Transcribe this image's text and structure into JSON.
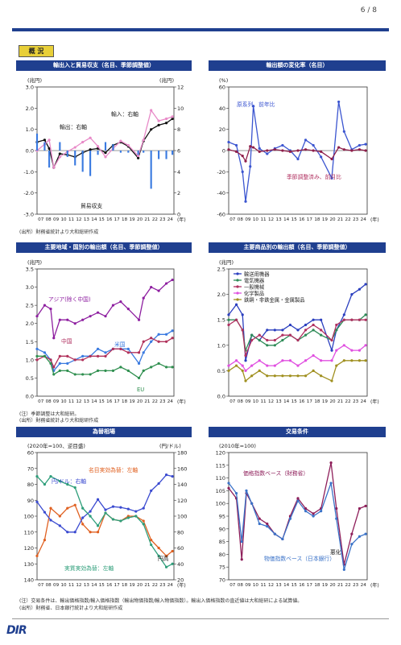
{
  "page_number": "6 / 8",
  "section_badge": "概 況",
  "footnotes": {
    "n1": "(出所）財務省統計より大和総研作成",
    "n2": "(出所）財務省統計より大和総研作成",
    "n3a": "(注）季節調整は大和総研。",
    "n3b": "(出所）財務省統計より大和総研作成",
    "n4a": "(注）交易条件は、輸出価格指数/輸入価格指数（輸出物価指数/輸入物価指数）。輸出入価格指数の直近値は大和総研による試算値。",
    "n4b": "(出所）財務省、日本銀行統計より大和総研作成"
  },
  "logo": "DIR",
  "x_ticks": [
    "07",
    "08",
    "09",
    "10",
    "11",
    "12",
    "13",
    "14",
    "15",
    "16",
    "17",
    "18",
    "19",
    "20",
    "21",
    "22",
    "23",
    "24"
  ],
  "year_label": "(年)",
  "chart_data": [
    {
      "id": "trade",
      "title": "輸出入と貿易収支（名目、季節調整値）",
      "type": "line",
      "ylabel_left": "(兆円)",
      "ylabel_right": "(兆円)",
      "ylim_left": [
        -3.0,
        3.0
      ],
      "yticks_left": [
        "3.0",
        "2.0",
        "1.0",
        "0.0",
        "-1.0",
        "-2.0",
        "-3.0"
      ],
      "ylim_right": [
        0,
        12
      ],
      "yticks_right": [
        "12",
        "10",
        "8",
        "6",
        "4",
        "2",
        "0"
      ],
      "annotations": [
        "輸入：右軸",
        "輸出：右軸",
        "貿易収支"
      ],
      "series": [
        {
          "name": "輸出：右軸",
          "axis": "right",
          "color": "#111111",
          "x": [
            2007,
            2008,
            2008.6,
            2009.2,
            2010,
            2011,
            2012,
            2013,
            2014,
            2015,
            2016,
            2017,
            2018,
            2019,
            2020.3,
            2021,
            2022,
            2023,
            2024,
            2024.8
          ],
          "values": [
            6.8,
            7.0,
            6.2,
            4.4,
            5.7,
            5.6,
            5.4,
            5.8,
            6.1,
            6.2,
            5.8,
            6.5,
            6.8,
            6.4,
            5.3,
            6.9,
            8.0,
            8.4,
            8.6,
            9.0
          ]
        },
        {
          "name": "輸入：右軸",
          "axis": "right",
          "color": "#e88ac8",
          "x": [
            2007,
            2008,
            2008.6,
            2009.2,
            2010,
            2011,
            2012,
            2013,
            2014,
            2015,
            2016,
            2017,
            2018,
            2019,
            2020.3,
            2021,
            2022,
            2023,
            2024,
            2024.8
          ],
          "values": [
            6.0,
            6.6,
            7.0,
            4.4,
            5.4,
            5.9,
            6.3,
            6.8,
            7.2,
            6.4,
            5.4,
            6.2,
            6.9,
            6.5,
            5.5,
            7.0,
            9.8,
            8.8,
            9.0,
            9.2
          ]
        },
        {
          "name": "貿易収支",
          "axis": "left",
          "color": "#3a7ae0",
          "type": "bar",
          "x": [
            2007,
            2008,
            2008.6,
            2009.2,
            2010,
            2011,
            2012,
            2013,
            2014,
            2015,
            2016,
            2017,
            2018,
            2019,
            2020.3,
            2021,
            2022,
            2023,
            2024,
            2024.8
          ],
          "values": [
            0.8,
            0.4,
            -0.8,
            0.0,
            0.4,
            -0.3,
            -0.7,
            -1.0,
            -1.2,
            -0.2,
            0.4,
            0.3,
            -0.1,
            -0.1,
            -0.2,
            -0.1,
            -1.8,
            -0.4,
            -0.4,
            -0.2
          ]
        }
      ]
    },
    {
      "id": "export-growth",
      "title": "輸出額の変化率（名目）",
      "type": "line",
      "ylabel": "(%)",
      "ylim": [
        -60,
        60
      ],
      "yticks": [
        "60",
        "40",
        "20",
        "0",
        "-20",
        "-40",
        "-60"
      ],
      "annotations": [
        "原系列、前年比",
        "季節調整済み、前月比"
      ],
      "series": [
        {
          "name": "原系列、前年比",
          "color": "#3b55d0",
          "x": [
            2007,
            2008,
            2008.8,
            2009.2,
            2009.8,
            2010.2,
            2011,
            2012,
            2013,
            2014,
            2015,
            2016,
            2017,
            2018,
            2019,
            2020.4,
            2021.3,
            2022,
            2023,
            2024,
            2024.8
          ],
          "values": [
            8,
            5,
            -20,
            -48,
            -15,
            42,
            2,
            -3,
            2,
            5,
            0,
            -8,
            10,
            5,
            -6,
            -26,
            46,
            18,
            1,
            5,
            6
          ]
        },
        {
          "name": "季節調整済み、前月比",
          "color": "#8e1e4a",
          "x": [
            2007,
            2008,
            2008.8,
            2009.2,
            2009.8,
            2010.2,
            2011,
            2012,
            2013,
            2014,
            2015,
            2016,
            2017,
            2018,
            2019,
            2020.4,
            2021.3,
            2022,
            2023,
            2024,
            2024.8
          ],
          "values": [
            1,
            -1,
            -5,
            -10,
            4,
            3,
            -1,
            0,
            1,
            0,
            -1,
            0,
            1,
            0,
            -1,
            -8,
            3,
            1,
            0,
            1,
            0
          ]
        }
      ]
    },
    {
      "id": "regions",
      "title": "主要地域・国別の輸出額（名目、季節調整値）",
      "type": "line",
      "ylabel": "(兆円)",
      "ylim": [
        0.0,
        3.5
      ],
      "yticks": [
        "3.5",
        "3.0",
        "2.5",
        "2.0",
        "1.5",
        "1.0",
        "0.5",
        "0.0"
      ],
      "series": [
        {
          "name": "アジア(除く中国)",
          "color": "#8e1fa0",
          "x": [
            2007,
            2008,
            2008.8,
            2009.2,
            2010,
            2011,
            2012,
            2013,
            2014,
            2015,
            2016,
            2017,
            2018,
            2019,
            2020.4,
            2021,
            2022,
            2023,
            2024,
            2024.8
          ],
          "values": [
            2.2,
            2.5,
            2.4,
            1.6,
            2.1,
            2.1,
            2.0,
            2.1,
            2.2,
            2.3,
            2.2,
            2.5,
            2.6,
            2.4,
            2.1,
            2.7,
            3.0,
            2.9,
            3.1,
            3.2
          ]
        },
        {
          "name": "米国",
          "color": "#3a7ae0",
          "x": [
            2007,
            2008,
            2008.8,
            2009.2,
            2010,
            2011,
            2012,
            2013,
            2014,
            2015,
            2016,
            2017,
            2018,
            2019,
            2020.4,
            2021,
            2022,
            2023,
            2024,
            2024.8
          ],
          "values": [
            1.3,
            1.2,
            1.0,
            0.7,
            0.9,
            0.9,
            1.0,
            1.1,
            1.1,
            1.3,
            1.2,
            1.3,
            1.3,
            1.3,
            0.9,
            1.2,
            1.5,
            1.7,
            1.7,
            1.8
          ]
        },
        {
          "name": "中国",
          "color": "#b0305a",
          "x": [
            2007,
            2008,
            2008.8,
            2009.2,
            2010,
            2011,
            2012,
            2013,
            2014,
            2015,
            2016,
            2017,
            2018,
            2019,
            2020.4,
            2021,
            2022,
            2023,
            2024,
            2024.8
          ],
          "values": [
            1.0,
            1.1,
            1.0,
            0.8,
            1.1,
            1.1,
            1.0,
            1.0,
            1.1,
            1.1,
            1.1,
            1.3,
            1.3,
            1.2,
            1.2,
            1.5,
            1.6,
            1.5,
            1.5,
            1.6
          ]
        },
        {
          "name": "EU",
          "color": "#2f8f4f",
          "x": [
            2007,
            2008,
            2008.8,
            2009.2,
            2010,
            2011,
            2012,
            2013,
            2014,
            2015,
            2016,
            2017,
            2018,
            2019,
            2020.4,
            2021,
            2022,
            2023,
            2024,
            2024.8
          ],
          "values": [
            1.1,
            1.1,
            0.9,
            0.6,
            0.7,
            0.7,
            0.6,
            0.6,
            0.6,
            0.7,
            0.7,
            0.7,
            0.8,
            0.7,
            0.5,
            0.7,
            0.8,
            0.9,
            0.8,
            0.8
          ]
        }
      ]
    },
    {
      "id": "products",
      "title": "主要商品別の輸出額（名目、季節調整値）",
      "type": "line",
      "ylabel": "(兆円)",
      "ylim": [
        0.0,
        2.5
      ],
      "yticks": [
        "2.5",
        "2.0",
        "1.5",
        "1.0",
        "0.5",
        "0.0"
      ],
      "legend_position": "top-left",
      "series": [
        {
          "name": "輸送用機器",
          "color": "#2b3fbf",
          "x": [
            2007,
            2008,
            2008.8,
            2009.2,
            2010,
            2011,
            2012,
            2013,
            2014,
            2015,
            2016,
            2017,
            2018,
            2019,
            2020.4,
            2021,
            2022,
            2023,
            2024,
            2024.8
          ],
          "values": [
            1.6,
            1.8,
            1.6,
            0.7,
            1.2,
            1.1,
            1.3,
            1.3,
            1.3,
            1.4,
            1.3,
            1.4,
            1.5,
            1.5,
            0.9,
            1.3,
            1.6,
            2.0,
            2.1,
            2.2
          ]
        },
        {
          "name": "電気機器",
          "color": "#2e8b57",
          "x": [
            2007,
            2008,
            2008.8,
            2009.2,
            2010,
            2011,
            2012,
            2013,
            2014,
            2015,
            2016,
            2017,
            2018,
            2019,
            2020.4,
            2021,
            2022,
            2023,
            2024,
            2024.8
          ],
          "values": [
            1.5,
            1.5,
            1.3,
            0.9,
            1.2,
            1.1,
            1.0,
            1.0,
            1.1,
            1.2,
            1.1,
            1.2,
            1.3,
            1.2,
            1.1,
            1.3,
            1.5,
            1.5,
            1.5,
            1.6
          ]
        },
        {
          "name": "一般機械",
          "color": "#b03060",
          "x": [
            2007,
            2008,
            2008.8,
            2009.2,
            2010,
            2011,
            2012,
            2013,
            2014,
            2015,
            2016,
            2017,
            2018,
            2019,
            2020.4,
            2021,
            2022,
            2023,
            2024,
            2024.8
          ],
          "values": [
            1.4,
            1.5,
            1.3,
            0.8,
            1.1,
            1.2,
            1.1,
            1.1,
            1.2,
            1.2,
            1.1,
            1.3,
            1.4,
            1.3,
            1.1,
            1.4,
            1.5,
            1.5,
            1.5,
            1.5
          ]
        },
        {
          "name": "化学製品",
          "color": "#e050e0",
          "x": [
            2007,
            2008,
            2008.8,
            2009.2,
            2010,
            2011,
            2012,
            2013,
            2014,
            2015,
            2016,
            2017,
            2018,
            2019,
            2020.4,
            2021,
            2022,
            2023,
            2024,
            2024.8
          ],
          "values": [
            0.6,
            0.7,
            0.6,
            0.5,
            0.6,
            0.7,
            0.6,
            0.6,
            0.7,
            0.7,
            0.6,
            0.7,
            0.8,
            0.7,
            0.7,
            0.9,
            1.0,
            0.9,
            0.9,
            1.0
          ]
        },
        {
          "name": "鉄鋼・非鉄金属・金属製品",
          "color": "#a09020",
          "x": [
            2007,
            2008,
            2008.8,
            2009.2,
            2010,
            2011,
            2012,
            2013,
            2014,
            2015,
            2016,
            2017,
            2018,
            2019,
            2020.4,
            2021,
            2022,
            2023,
            2024,
            2024.8
          ],
          "values": [
            0.5,
            0.6,
            0.5,
            0.3,
            0.4,
            0.5,
            0.4,
            0.4,
            0.4,
            0.4,
            0.4,
            0.4,
            0.5,
            0.4,
            0.3,
            0.6,
            0.7,
            0.7,
            0.7,
            0.7
          ]
        }
      ]
    },
    {
      "id": "fx",
      "title": "為替相場",
      "type": "line",
      "ylabel_left": "(2020年=100、逆目盛)",
      "ylabel_right": "(円/ドル)",
      "ylim_left": [
        140,
        60
      ],
      "yticks_left": [
        "60",
        "70",
        "80",
        "90",
        "100",
        "110",
        "120",
        "130",
        "140"
      ],
      "ylim_right": [
        20,
        180
      ],
      "yticks_right": [
        "180",
        "160",
        "140",
        "120",
        "100",
        "80",
        "60",
        "40",
        "20"
      ],
      "annotations": [
        "名目実効為替：左軸",
        "円/ドル：右軸",
        "実質実効為替：左軸",
        "円高"
      ],
      "series": [
        {
          "name": "名目実効為替：左軸",
          "axis": "left",
          "color": "#e06020",
          "x": [
            2007,
            2008,
            2008.8,
            2010,
            2011,
            2012,
            2013,
            2014,
            2015,
            2016,
            2017,
            2018,
            2019,
            2020,
            2021,
            2022,
            2023,
            2024,
            2024.8
          ],
          "values": [
            125,
            115,
            95,
            100,
            95,
            93,
            105,
            110,
            110,
            98,
            102,
            103,
            100,
            100,
            103,
            115,
            120,
            125,
            122
          ]
        },
        {
          "name": "円/ドル：右軸",
          "axis": "right",
          "color": "#3a4ad0",
          "x": [
            2007,
            2008,
            2008.8,
            2010,
            2011,
            2012,
            2013,
            2014,
            2015,
            2016,
            2017,
            2018,
            2019,
            2020,
            2021,
            2022,
            2023,
            2024,
            2024.8
          ],
          "values": [
            118,
            105,
            95,
            88,
            80,
            80,
            98,
            106,
            121,
            108,
            112,
            111,
            109,
            106,
            110,
            132,
            141,
            152,
            150
          ]
        },
        {
          "name": "実質実効為替：左軸",
          "axis": "left",
          "color": "#2e9e7a",
          "x": [
            2007,
            2008,
            2008.8,
            2010,
            2011,
            2012,
            2013,
            2014,
            2015,
            2016,
            2017,
            2018,
            2019,
            2020,
            2021,
            2022,
            2023,
            2024,
            2024.8
          ],
          "values": [
            75,
            80,
            75,
            78,
            80,
            82,
            95,
            100,
            106,
            98,
            102,
            103,
            101,
            100,
            105,
            118,
            125,
            132,
            130
          ]
        }
      ]
    },
    {
      "id": "tot",
      "title": "交易条件",
      "type": "line",
      "ylabel": "(2010年=100)",
      "ylim": [
        70,
        120
      ],
      "yticks": [
        "120",
        "115",
        "110",
        "105",
        "100",
        "95",
        "90",
        "85",
        "80",
        "75",
        "70"
      ],
      "annotations": [
        "悪化"
      ],
      "series": [
        {
          "name": "価格指数ベース（財務省）",
          "color": "#8e1e5a",
          "x": [
            2007,
            2008,
            2008.7,
            2009.3,
            2010,
            2011,
            2012,
            2013,
            2014,
            2015,
            2016,
            2017,
            2018,
            2019,
            2020.3,
            2021,
            2022,
            2023,
            2024,
            2024.8
          ],
          "values": [
            106,
            102,
            78,
            104,
            100,
            94,
            92,
            88,
            86,
            95,
            102,
            98,
            96,
            98,
            116,
            98,
            76,
            88,
            98,
            99
          ]
        },
        {
          "name": "物価指数ベース（日本銀行）",
          "color": "#3a72c8",
          "x": [
            2007,
            2008,
            2008.7,
            2009.3,
            2010,
            2011,
            2012,
            2013,
            2014,
            2015,
            2016,
            2017,
            2018,
            2019,
            2020.3,
            2021,
            2022,
            2023,
            2024,
            2024.8
          ],
          "values": [
            108,
            104,
            85,
            105,
            100,
            92,
            91,
            88,
            86,
            94,
            101,
            97,
            95,
            97,
            108,
            94,
            74,
            84,
            87,
            88
          ]
        }
      ]
    }
  ]
}
